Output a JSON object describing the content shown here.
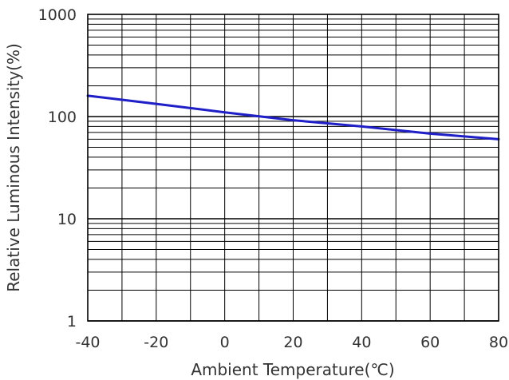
{
  "chart_data": {
    "type": "line",
    "title": "",
    "xlabel": "Ambient Temperature(℃)",
    "ylabel": "Relative Luminous Intensity(%)",
    "xlim": [
      -40,
      80
    ],
    "ylim": [
      1,
      1000
    ],
    "yscale": "log",
    "grid": true,
    "xticks": [
      -40,
      -20,
      0,
      20,
      40,
      60,
      80
    ],
    "xtick_labels": [
      "-40",
      "-20",
      "0",
      "20",
      "40",
      "60",
      "80"
    ],
    "yticks": [
      1,
      10,
      100,
      1000
    ],
    "ytick_labels": [
      "1",
      "10",
      "100",
      "1000"
    ],
    "series": [
      {
        "color": "#1f1fc8",
        "x": [
          -40,
          -20,
          0,
          20,
          40,
          60,
          80
        ],
        "y": [
          160,
          133,
          110,
          92,
          80,
          68,
          60
        ]
      }
    ]
  }
}
